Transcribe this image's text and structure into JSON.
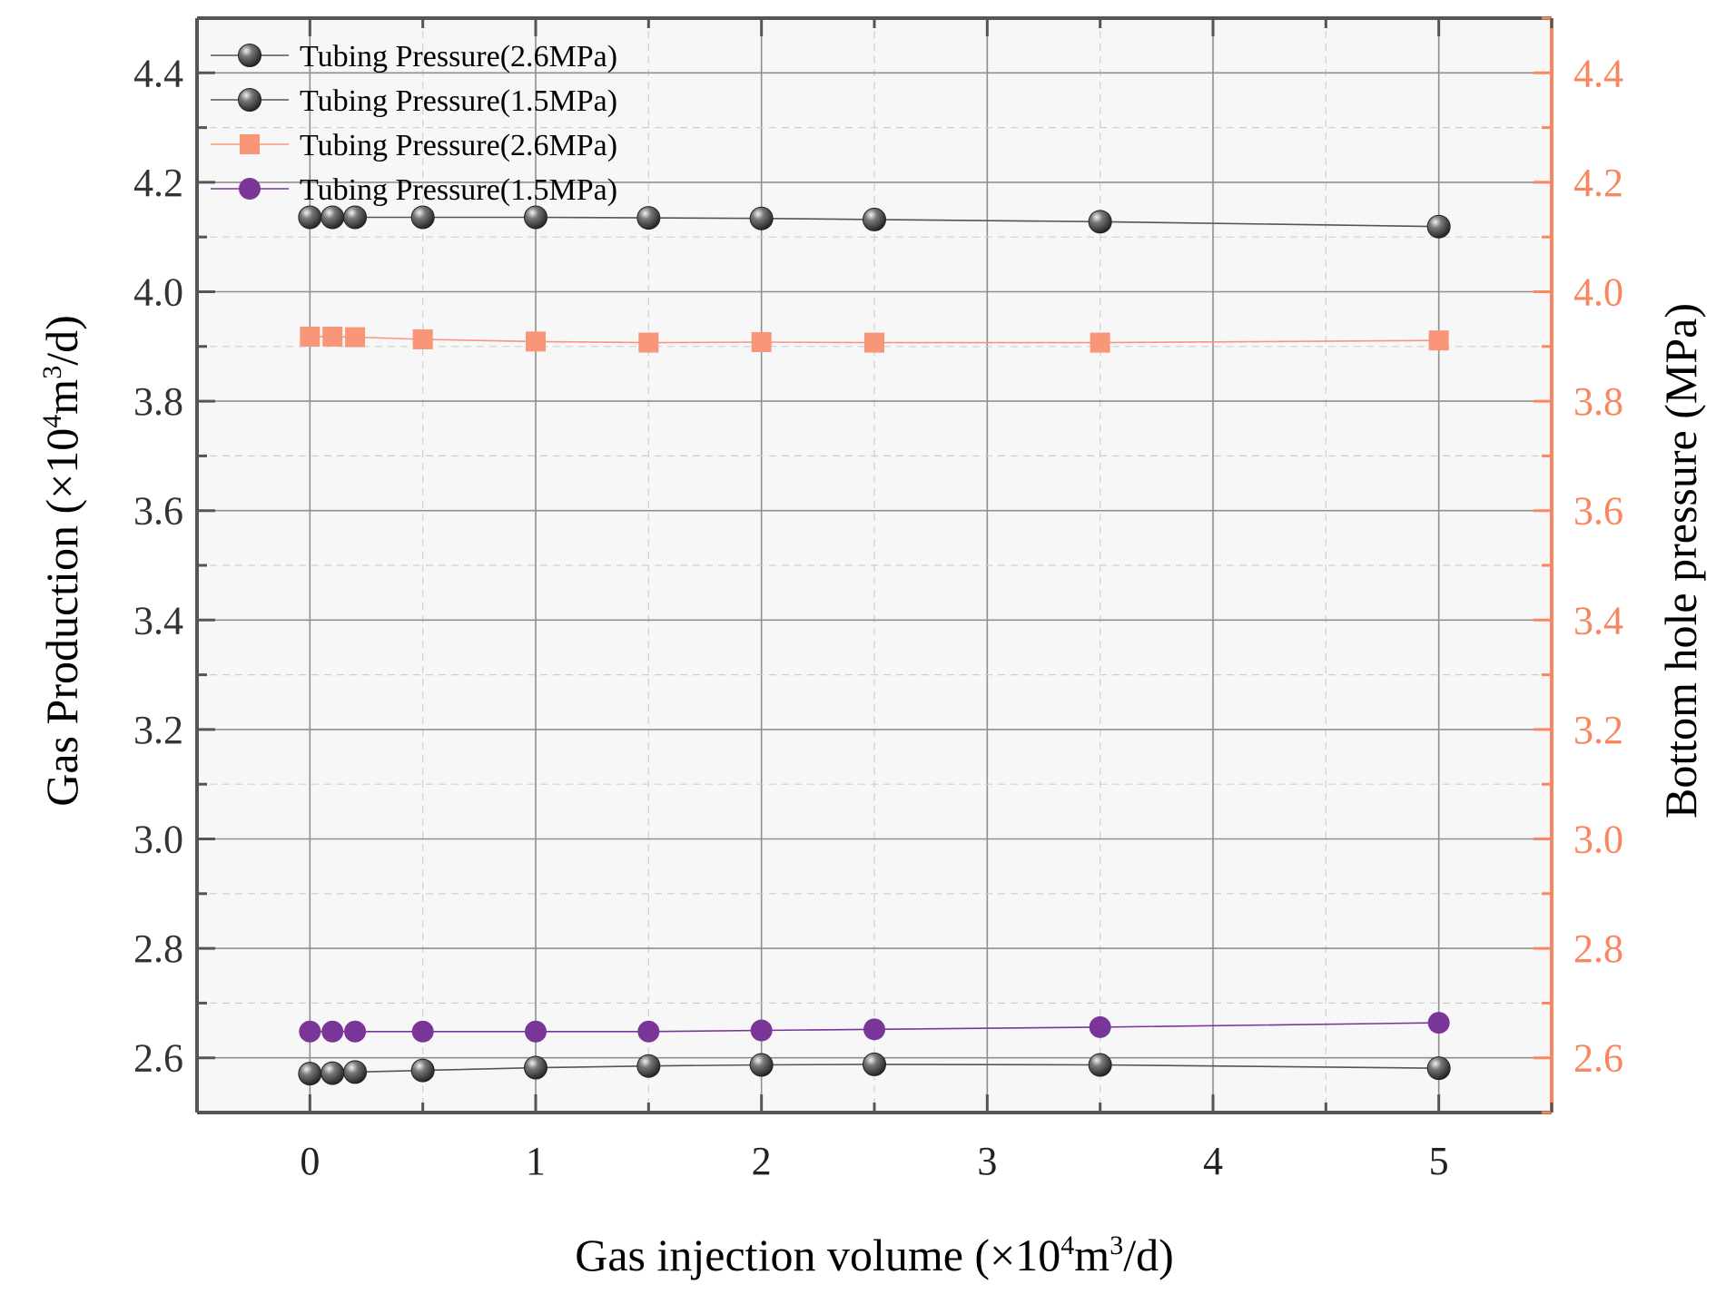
{
  "chart_data": {
    "type": "line",
    "xlabel": {
      "pre": "Gas injection volume (×10",
      "sup1": "4",
      "mid": "m",
      "sup2": "3",
      "post": "/d)"
    },
    "ylabel_left": {
      "pre": "Gas Production (×10",
      "sup1": "4",
      "mid": "m",
      "sup2": "3",
      "post": "/d)"
    },
    "ylabel_right": "Bottom hole pressure (MPa)",
    "xlim": [
      -0.5,
      5.5
    ],
    "ylim": [
      2.5,
      4.5
    ],
    "x_ticks": [
      "0",
      "1",
      "2",
      "3",
      "4",
      "5"
    ],
    "y_ticks_left": [
      "2.6",
      "2.8",
      "3.0",
      "3.2",
      "3.4",
      "3.6",
      "3.8",
      "4.0",
      "4.2",
      "4.4"
    ],
    "y_ticks_right": [
      "2.6",
      "2.8",
      "3.0",
      "3.2",
      "3.4",
      "3.6",
      "3.8",
      "4.0",
      "4.2",
      "4.4"
    ],
    "grid": true,
    "legend_position": "top-left",
    "series": [
      {
        "name": "Tubing Pressure(2.6MPa)",
        "axis": "left",
        "marker": "sphere",
        "color": "#3a3a3a",
        "line_color": "#555555",
        "x": [
          0,
          0.1,
          0.2,
          0.5,
          1,
          1.5,
          2,
          2.5,
          3.5,
          5
        ],
        "y": [
          4.136,
          4.136,
          4.136,
          4.136,
          4.136,
          4.135,
          4.134,
          4.132,
          4.128,
          4.119
        ]
      },
      {
        "name": "Tubing Pressure(1.5MPa)",
        "axis": "left",
        "marker": "sphere",
        "color": "#3a3a3a",
        "line_color": "#555555",
        "x": [
          0,
          0.1,
          0.2,
          0.5,
          1,
          1.5,
          2,
          2.5,
          3.5,
          5
        ],
        "y": [
          2.571,
          2.572,
          2.574,
          2.577,
          2.582,
          2.585,
          2.587,
          2.588,
          2.587,
          2.581
        ]
      },
      {
        "name": "Tubing Pressure(2.6MPa)",
        "axis": "right",
        "marker": "square",
        "color": "#f9967a",
        "line_color": "#f9967a",
        "x": [
          0,
          0.1,
          0.2,
          0.5,
          1,
          1.5,
          2,
          2.5,
          3.5,
          5
        ],
        "y": [
          3.918,
          3.918,
          3.917,
          3.913,
          3.909,
          3.907,
          3.908,
          3.907,
          3.907,
          3.911
        ]
      },
      {
        "name": "Tubing Pressure(1.5MPa)",
        "axis": "right",
        "marker": "circle",
        "color": "#7a3598",
        "line_color": "#7a3598",
        "x": [
          0,
          0.1,
          0.2,
          0.5,
          1,
          1.5,
          2,
          2.5,
          3.5,
          5
        ],
        "y": [
          2.648,
          2.648,
          2.648,
          2.648,
          2.648,
          2.648,
          2.65,
          2.652,
          2.656,
          2.664
        ]
      }
    ]
  },
  "colors": {
    "right_axis": "#f9865f",
    "left_axis": "#555555",
    "plot_bg": "#f7f7f7",
    "grid": "#9a9a9a"
  }
}
